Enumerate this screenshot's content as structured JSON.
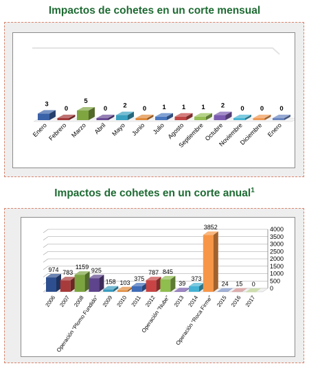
{
  "charts": [
    {
      "title": "Impactos de cohetes en un corte mensual",
      "chart_data": {
        "type": "bar",
        "categories": [
          "Enero",
          "Febrero",
          "Marzo",
          "Abril",
          "Mayo",
          "Junio",
          "Julio",
          "Agosto",
          "Septiembre",
          "Octubre",
          "Noviembre",
          "Diciembre",
          "Enero"
        ],
        "values": [
          3,
          0,
          5,
          0,
          2,
          0,
          1,
          1,
          1,
          2,
          0,
          0,
          0
        ],
        "colors": [
          "#3a62a8",
          "#a33a3a",
          "#7fa541",
          "#6b4c96",
          "#3aa0c0",
          "#e08a3c",
          "#4a78c0",
          "#c04545",
          "#95be55",
          "#7c5cb0",
          "#46b4d3",
          "#ef9a55",
          "#6a86c0"
        ],
        "title": "Impactos de cohetes en un corte mensual",
        "xlabel": "",
        "ylabel": "",
        "ylim": [
          0,
          60
        ]
      }
    },
    {
      "title": "Impactos de cohetes en un corte anual",
      "title_sup": "1",
      "chart_data": {
        "type": "bar",
        "categories": [
          "2006",
          "2007",
          "2008",
          "Operación “Plomo Fundido”",
          "2009",
          "2010",
          "2011",
          "2012",
          "Operación “Nube”",
          "2013",
          "2014",
          "Operación “Roca Firme”",
          "2015",
          "2016",
          "2017"
        ],
        "values": [
          974,
          783,
          1159,
          925,
          158,
          103,
          375,
          787,
          845,
          39,
          373,
          3852,
          24,
          15,
          0
        ],
        "colors": [
          "#2d4f8f",
          "#a73a3a",
          "#7ba43f",
          "#5e448c",
          "#3a9cc0",
          "#e28a3a",
          "#3f6cb8",
          "#c84444",
          "#8fbd4e",
          "#7456ab",
          "#44b2d3",
          "#f79646",
          "#7c92c4",
          "#d08a8a",
          "#b8cf8c"
        ],
        "title": "Impactos de cohetes en un corte anual",
        "xlabel": "",
        "ylabel": "",
        "ylim": [
          0,
          4000
        ],
        "yticks": [
          0,
          500,
          1000,
          1500,
          2000,
          2500,
          3000,
          3500,
          4000
        ],
        "grid": true
      }
    }
  ]
}
